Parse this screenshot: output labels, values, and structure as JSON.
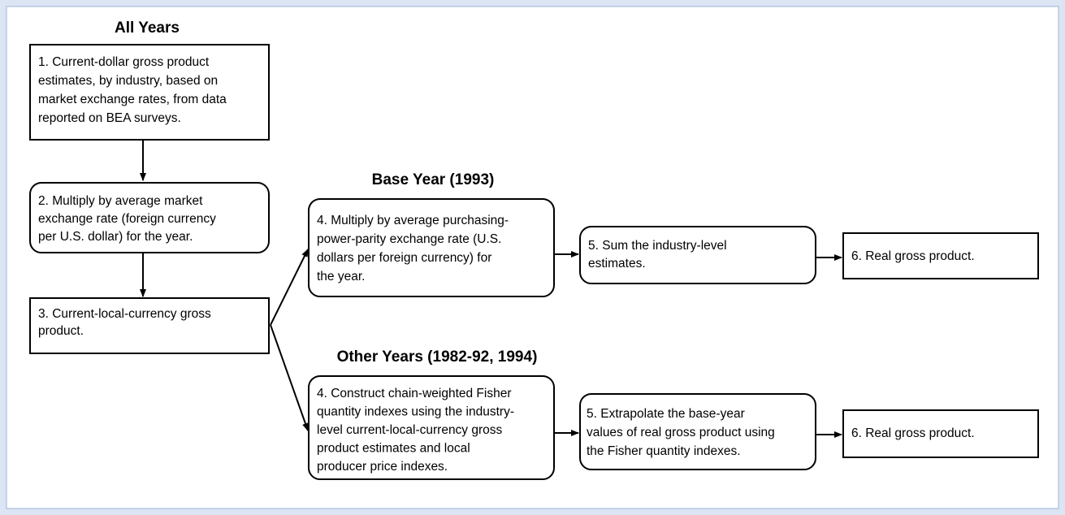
{
  "headings": [
    "All Years",
    "Base Year  (1993)",
    "Other Years (1982-92, 1994)"
  ],
  "nodes": [
    {
      "lines": [
        "1. Current-dollar gross product",
        "estimates, by industry, based on",
        "market exchange rates, from data",
        "reported on BEA surveys."
      ]
    },
    {
      "lines": [
        "2. Multiply by average market",
        "exchange rate (foreign currency",
        "per U.S. dollar) for the year."
      ]
    },
    {
      "lines": [
        "3. Current-local-currency gross",
        "product."
      ]
    },
    {
      "lines": [
        "4. Multiply by average purchasing-",
        "power-parity exchange rate (U.S.",
        "dollars per foreign currency) for",
        "the year."
      ]
    },
    {
      "lines": [
        "5. Sum  the industry-level",
        "estimates."
      ]
    },
    {
      "lines": [
        "6. Real gross product."
      ]
    },
    {
      "lines": [
        "4. Construct chain-weighted Fisher",
        "quantity indexes using the industry-",
        "level current-local-currency gross",
        "product estimates and local",
        "producer price indexes."
      ]
    },
    {
      "lines": [
        "5. Extrapolate the base-year",
        "values of real gross product using",
        "the Fisher quantity indexes."
      ]
    },
    {
      "lines": [
        "6. Real gross product."
      ]
    }
  ]
}
